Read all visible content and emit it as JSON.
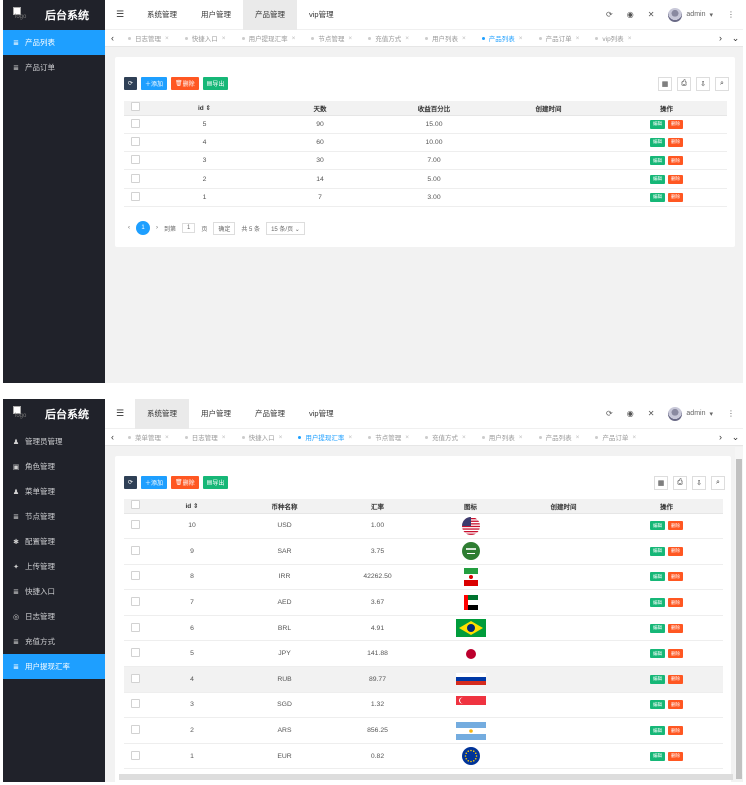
{
  "shotA": {
    "app_title": "后台系统",
    "logo_alt": "logo",
    "sidebar": [
      {
        "label": "产品列表",
        "active": true
      },
      {
        "label": "产品订单",
        "active": false
      }
    ],
    "top_nav": [
      {
        "label": "系统管理"
      },
      {
        "label": "用户管理"
      },
      {
        "label": "产品管理",
        "active": true
      },
      {
        "label": "vip管理"
      }
    ],
    "user": "admin",
    "tabs": [
      {
        "label": "日志管理",
        "active": false
      },
      {
        "label": "快捷入口",
        "active": false
      },
      {
        "label": "用户提现汇率",
        "active": false
      },
      {
        "label": "节点管理",
        "active": false
      },
      {
        "label": "充值方式",
        "active": false
      },
      {
        "label": "用户列表",
        "active": false
      },
      {
        "label": "产品列表",
        "active": true
      },
      {
        "label": "产品订单",
        "active": false
      },
      {
        "label": "vip列表",
        "active": false
      }
    ],
    "toolbar": {
      "add": "添加",
      "delete": "删除",
      "export": "导出"
    },
    "table": {
      "headers": [
        "id",
        "天数",
        "收益百分比",
        "创建时间",
        "操作"
      ],
      "rows": [
        {
          "id": "5",
          "days": "90",
          "pct": "15.00",
          "created": ""
        },
        {
          "id": "4",
          "days": "60",
          "pct": "10.00",
          "created": ""
        },
        {
          "id": "3",
          "days": "30",
          "pct": "7.00",
          "created": ""
        },
        {
          "id": "2",
          "days": "14",
          "pct": "5.00",
          "created": ""
        },
        {
          "id": "1",
          "days": "7",
          "pct": "3.00",
          "created": ""
        }
      ],
      "edit_label": "编辑",
      "delete_label": "删除"
    },
    "pager": {
      "current": "1",
      "goto_label": "到第",
      "page_input": "1",
      "page_unit": "页",
      "confirm": "确定",
      "total": "共 5 条",
      "per_page": "15 条/页"
    }
  },
  "shotB": {
    "app_title": "后台系统",
    "logo_alt": "logo",
    "sidebar": [
      {
        "label": "管理员管理",
        "icon": "user-icon",
        "glyph": "♟",
        "active": false
      },
      {
        "label": "角色管理",
        "icon": "role-icon",
        "glyph": "▣",
        "active": false
      },
      {
        "label": "菜单管理",
        "icon": "menu-icon",
        "glyph": "♟",
        "active": false
      },
      {
        "label": "节点管理",
        "icon": "list-icon",
        "glyph": "≣",
        "active": false
      },
      {
        "label": "配置管理",
        "icon": "gear-icon",
        "glyph": "✱",
        "active": false
      },
      {
        "label": "上传管理",
        "icon": "upload-icon",
        "glyph": "✦",
        "active": false
      },
      {
        "label": "快捷入口",
        "icon": "list-icon",
        "glyph": "≣",
        "active": false
      },
      {
        "label": "日志管理",
        "icon": "log-icon",
        "glyph": "◎",
        "active": false
      },
      {
        "label": "充值方式",
        "icon": "list-icon",
        "glyph": "≣",
        "active": false
      },
      {
        "label": "用户提现汇率",
        "icon": "list-icon",
        "glyph": "≣",
        "active": true
      }
    ],
    "top_nav": [
      {
        "label": "系统管理",
        "active": true
      },
      {
        "label": "用户管理"
      },
      {
        "label": "产品管理"
      },
      {
        "label": "vip管理"
      }
    ],
    "user": "admin",
    "tabs": [
      {
        "label": "菜单管理",
        "active": false
      },
      {
        "label": "日志管理",
        "active": false
      },
      {
        "label": "快捷入口",
        "active": false
      },
      {
        "label": "用户提现汇率",
        "active": true
      },
      {
        "label": "节点管理",
        "active": false
      },
      {
        "label": "充值方式",
        "active": false
      },
      {
        "label": "用户列表",
        "active": false
      },
      {
        "label": "产品列表",
        "active": false
      },
      {
        "label": "产品订单",
        "active": false
      }
    ],
    "toolbar": {
      "add": "添加",
      "delete": "删除",
      "export": "导出"
    },
    "table": {
      "headers": [
        "id",
        "币种名称",
        "汇率",
        "图标",
        "创建时间",
        "操作"
      ],
      "rows": [
        {
          "id": "10",
          "currency": "USD",
          "rate": "1.00",
          "flag": "us-flag"
        },
        {
          "id": "9",
          "currency": "SAR",
          "rate": "3.75",
          "flag": "sa-flag"
        },
        {
          "id": "8",
          "currency": "IRR",
          "rate": "42262.50",
          "flag": "ir-flag"
        },
        {
          "id": "7",
          "currency": "AED",
          "rate": "3.67",
          "flag": "ae-flag"
        },
        {
          "id": "6",
          "currency": "BRL",
          "rate": "4.91",
          "flag": "br-flag"
        },
        {
          "id": "5",
          "currency": "JPY",
          "rate": "141.88",
          "flag": "jp-flag"
        },
        {
          "id": "4",
          "currency": "RUB",
          "rate": "89.77",
          "flag": "ru-flag",
          "highlight": true
        },
        {
          "id": "3",
          "currency": "SGD",
          "rate": "1.32",
          "flag": "sg-flag"
        },
        {
          "id": "2",
          "currency": "ARS",
          "rate": "856.25",
          "flag": "ar-flag"
        },
        {
          "id": "1",
          "currency": "EUR",
          "rate": "0.82",
          "flag": "eu-flag"
        }
      ],
      "edit_label": "编辑",
      "delete_label": "删除"
    }
  }
}
